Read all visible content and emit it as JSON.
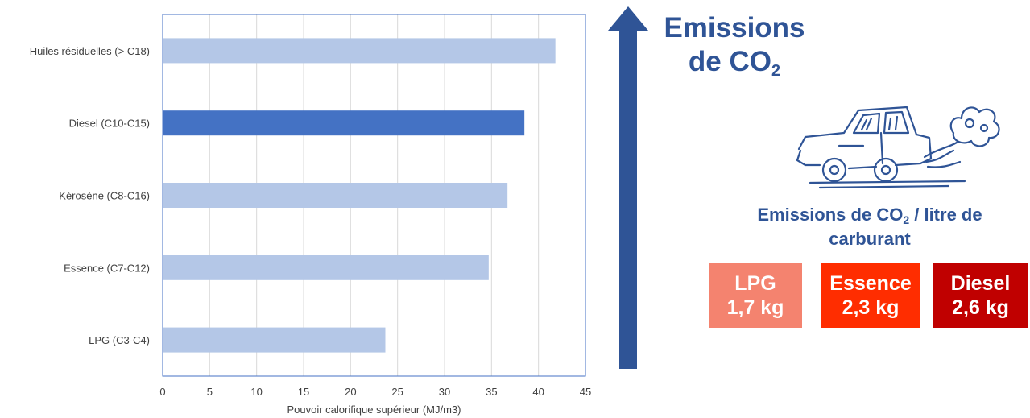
{
  "chart_data": {
    "type": "bar",
    "orientation": "horizontal",
    "categories": [
      "Huiles résiduelles (> C18)",
      "Diesel (C10-C15)",
      "Kérosène (C8-C16)",
      "Essence (C7-C12)",
      "LPG (C3-C4)"
    ],
    "values": [
      41.8,
      38.5,
      36.7,
      34.7,
      23.7
    ],
    "highlight": "Diesel (C10-C15)",
    "xlabel": "Pouvoir calorifique supérieur (MJ/m3)",
    "xlim": [
      0,
      45
    ],
    "xticks": [
      0,
      5,
      10,
      15,
      20,
      25,
      30,
      35,
      40,
      45
    ],
    "grid": true,
    "colors": {
      "bar": "#b4c7e7",
      "highlight": "#4472c4",
      "axis": "#4472c4",
      "grid": "#d9d9d9"
    }
  },
  "panel": {
    "title_line1": "Emissions",
    "title_line2_prefix": "de CO",
    "title_line2_sub": "2",
    "car_icon": "car-exhaust-icon",
    "arrow_icon": "up-arrow-icon",
    "per_litre_prefix": "Emissions de CO",
    "per_litre_sub": "2",
    "per_litre_suffix": " / litre de",
    "per_litre_line2": "carburant",
    "fuels": [
      {
        "name": "LPG",
        "amount": "1,7 kg",
        "color": "#f4836f"
      },
      {
        "name": "Essence",
        "amount": "2,3 kg",
        "color": "#ff2d00"
      },
      {
        "name": "Diesel",
        "amount": "2,6 kg",
        "color": "#c00000"
      }
    ],
    "colors": {
      "accent": "#2f5496"
    }
  }
}
